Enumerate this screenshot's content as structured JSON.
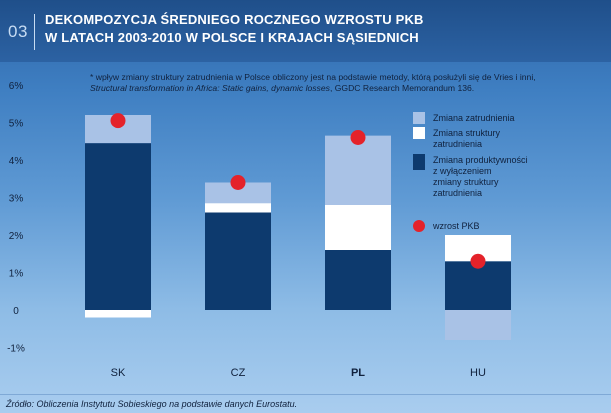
{
  "header": {
    "section_number": "03",
    "title_line1": "DEKOMPOZYCJA ŚREDNIEGO ROCZNEGO WZROSTU PKB",
    "title_line2": "W LATACH 2003-2010 W POLSCE I KRAJACH SĄSIEDNICH"
  },
  "note": {
    "text1": "* wpływ zmiany struktury zatrudnienia w Polsce obliczony jest na podstawie metody, którą posłużyli się de Vries i inni,",
    "italic": "Structural transformation in Africa: Static gains, dynamic losses",
    "text2": ", GGDC Research Memorandum 136."
  },
  "source": "Źródło: Obliczenia Instytutu Sobieskiego na podstawie danych Eurostatu.",
  "colors": {
    "employment": "#a9c2e6",
    "structure": "#ffffff",
    "productivity": "#0d3a6e",
    "gdp_dot": "#e4222a"
  },
  "chart_data": {
    "type": "bar",
    "stacked": true,
    "categories": [
      "SK",
      "CZ",
      "PL",
      "HU"
    ],
    "ylim": [
      -1,
      6
    ],
    "yticks": [
      "-1%",
      "0",
      "1%",
      "2%",
      "3%",
      "4%",
      "5%",
      "6%"
    ],
    "series": [
      {
        "name": "Zmiana zatrudnienia",
        "values": [
          0.75,
          0.55,
          1.85,
          -0.8
        ]
      },
      {
        "name": "Zmiana struktury zatrudnienia",
        "values": [
          -0.2,
          0.25,
          1.2,
          0.7
        ]
      },
      {
        "name": "Zmiana produktywności z wyłączeniem zmiany struktury zatrudnienia",
        "values": [
          4.45,
          2.6,
          1.6,
          1.3
        ]
      }
    ],
    "gdp_growth": {
      "name": "wzrost PKB",
      "values": [
        5.05,
        3.4,
        4.6,
        1.3
      ]
    },
    "legend": [
      {
        "label": "Zmiana zatrudnienia",
        "color": "#a9c2e6"
      },
      {
        "label": "Zmiana struktury zatrudnienia",
        "color": "#ffffff"
      },
      {
        "label": "Zmiana produktywności z wyłączeniem zmiany struktury zatrudnienia",
        "color": "#0d3a6e"
      },
      {
        "label": "wzrost PKB",
        "color": "#e4222a"
      }
    ],
    "legend_placement": "right"
  }
}
